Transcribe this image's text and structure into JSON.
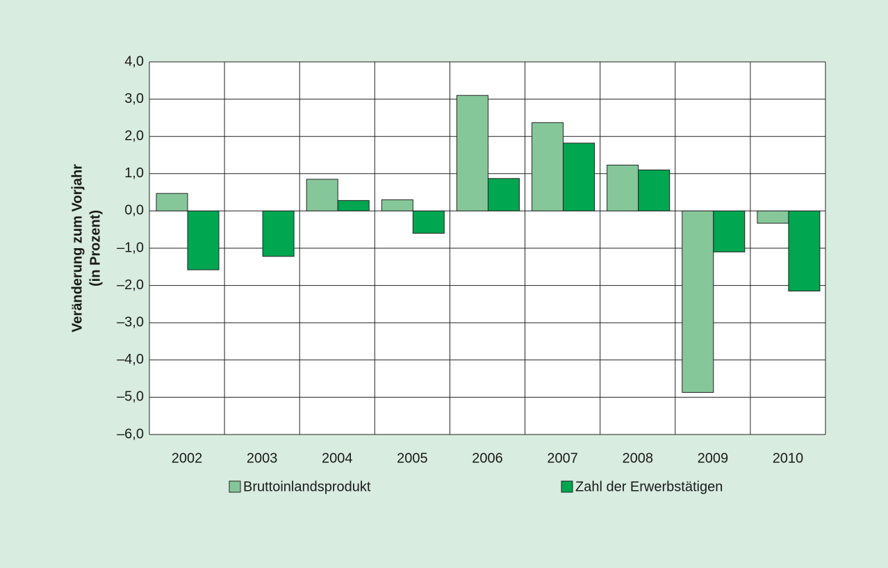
{
  "chart_data": {
    "type": "bar",
    "y_label": [
      "Veränderung zum Vorjahr",
      "(in Prozent)"
    ],
    "categories": [
      "2002",
      "2003",
      "2004",
      "2005",
      "2006",
      "2007",
      "2008",
      "2009",
      "2010"
    ],
    "series": [
      {
        "name": "Bruttoinlandsprodukt",
        "color": "#86c79a",
        "values": [
          0.47,
          0.0,
          0.85,
          0.3,
          3.1,
          2.37,
          1.23,
          -4.87,
          -0.33
        ]
      },
      {
        "name": "Zahl der Erwerbstätigen",
        "color": "#00a650",
        "values": [
          -1.58,
          -1.22,
          0.28,
          -0.6,
          0.87,
          1.82,
          1.1,
          -1.1,
          -2.15
        ]
      }
    ],
    "ylim": [
      -6,
      4
    ],
    "yticks": [
      {
        "value": 4,
        "label": "4,0"
      },
      {
        "value": 3,
        "label": "3,0"
      },
      {
        "value": 2,
        "label": "2,0"
      },
      {
        "value": 1,
        "label": "1,0"
      },
      {
        "value": 0,
        "label": "0,0"
      },
      {
        "value": -1,
        "label": "–1,0"
      },
      {
        "value": -2,
        "label": "–2,0"
      },
      {
        "value": -3,
        "label": "–3,0"
      },
      {
        "value": -4,
        "label": "–4,0"
      },
      {
        "value": -5,
        "label": "–5,0"
      },
      {
        "value": -6,
        "label": "–6,0"
      }
    ],
    "grid": true
  }
}
